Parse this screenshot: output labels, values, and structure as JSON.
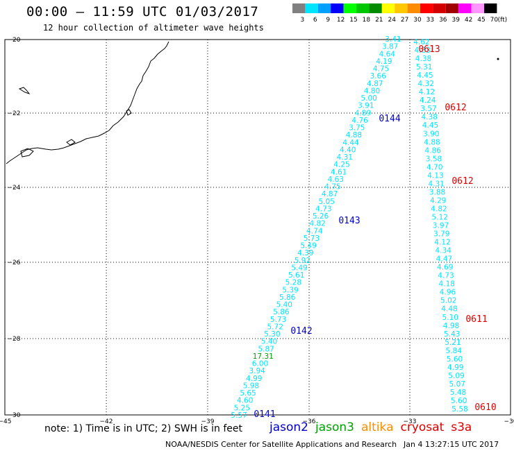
{
  "title": "00:00 – 11:59 UTC 01/03/2017",
  "subtitle": "12 hour collection of altimeter wave heights",
  "colorbar": {
    "ticks": [
      "3",
      "6",
      "9",
      "12",
      "15",
      "18",
      "21",
      "24",
      "27",
      "30",
      "33",
      "36",
      "39",
      "42",
      "45",
      "70"
    ],
    "unit": "(ft)",
    "colors": [
      "#808080",
      "#00e5ff",
      "#00a0ff",
      "#0000ff",
      "#00ff00",
      "#00c800",
      "#008c00",
      "#ffff00",
      "#ffc800",
      "#ff8c00",
      "#ff0000",
      "#d20000",
      "#a00000",
      "#ff00ff",
      "#ff96ff",
      "#000000"
    ]
  },
  "axes": {
    "lon_labels": [
      "−45",
      "−42",
      "−39",
      "−36",
      "−33",
      "−30"
    ],
    "lat_labels": [
      "−20",
      "−22",
      "−24",
      "−26",
      "−28",
      "−30"
    ],
    "lon_range": [
      -45,
      -30
    ],
    "lat_range": [
      -20,
      -30
    ]
  },
  "tracks": [
    {
      "name": "center",
      "color": "#00e5ff",
      "values": [
        "3.41",
        "3.87",
        "4.64",
        "4.19",
        "4.75",
        "3.66",
        "4.87",
        "4.80",
        "5.00",
        "3.91",
        "4.89",
        "4.76",
        "3.75",
        "4.88",
        "4.44",
        "4.40",
        "4.31",
        "4.25",
        "4.61",
        "4.63",
        "4.75",
        "4.87",
        "5.05",
        "4.73",
        "5.26",
        "4.82",
        "4.74",
        "5.73",
        "5.49",
        "4.39",
        "5.92",
        "5.49",
        "5.61",
        "5.28",
        "5.39",
        "5.86",
        "5.40",
        "5.86",
        "5.73",
        "5.72",
        "5.30",
        "5.40",
        "5.87",
        "17.31",
        "6.00",
        "3.94",
        "4.99",
        "5.98",
        "5.65",
        "4.60",
        "5.25",
        "5.57"
      ]
    },
    {
      "name": "right",
      "color": "#00e5ff",
      "values": [
        "4.62",
        "4.83",
        "4.38",
        "5.31",
        "4.45",
        "4.32",
        "4.12",
        "4.24",
        "3.57",
        "4.38",
        "4.45",
        "3.90",
        "4.88",
        "4.86",
        "3.58",
        "4.70",
        "4.13",
        "4.31",
        "3.88",
        "4.29",
        "4.82",
        "5.12",
        "3.97",
        "3.79",
        "4.12",
        "4.34",
        "4.47",
        "4.69",
        "4.73",
        "4.18",
        "4.96",
        "5.02",
        "4.48",
        "5.10",
        "4.98",
        "5.43",
        "5.21",
        "5.84",
        "5.60",
        "4.99",
        "5.09",
        "5.07",
        "5.48",
        "5.60",
        "5.58"
      ]
    }
  ],
  "time_labels": [
    {
      "text": "0613",
      "color": "#e00000"
    },
    {
      "text": "0612",
      "color": "#e00000"
    },
    {
      "text": "0144",
      "color": "#0000c8"
    },
    {
      "text": "0612",
      "color": "#e00000"
    },
    {
      "text": "0143",
      "color": "#0000c8"
    },
    {
      "text": "0611",
      "color": "#e00000"
    },
    {
      "text": "0142",
      "color": "#0000c8"
    },
    {
      "text": "0610",
      "color": "#e00000"
    },
    {
      "text": "0141",
      "color": "#0000c8"
    }
  ],
  "note": "note: 1) Time is in UTC; 2) SWH is in feet",
  "legend": [
    {
      "label": "jason2",
      "color": "#0000c8"
    },
    {
      "label": "jason3",
      "color": "#00a000"
    },
    {
      "label": "altika",
      "color": "#ff8c00"
    },
    {
      "label": "cryosat",
      "color": "#e00000"
    },
    {
      "label": "s3a",
      "color": "#e00000"
    }
  ],
  "footer": {
    "credit": "NOAA/NESDIS Center for Satellite Applications and Research",
    "timestamp": "Jan  4 13:27:15 UTC 2017"
  }
}
